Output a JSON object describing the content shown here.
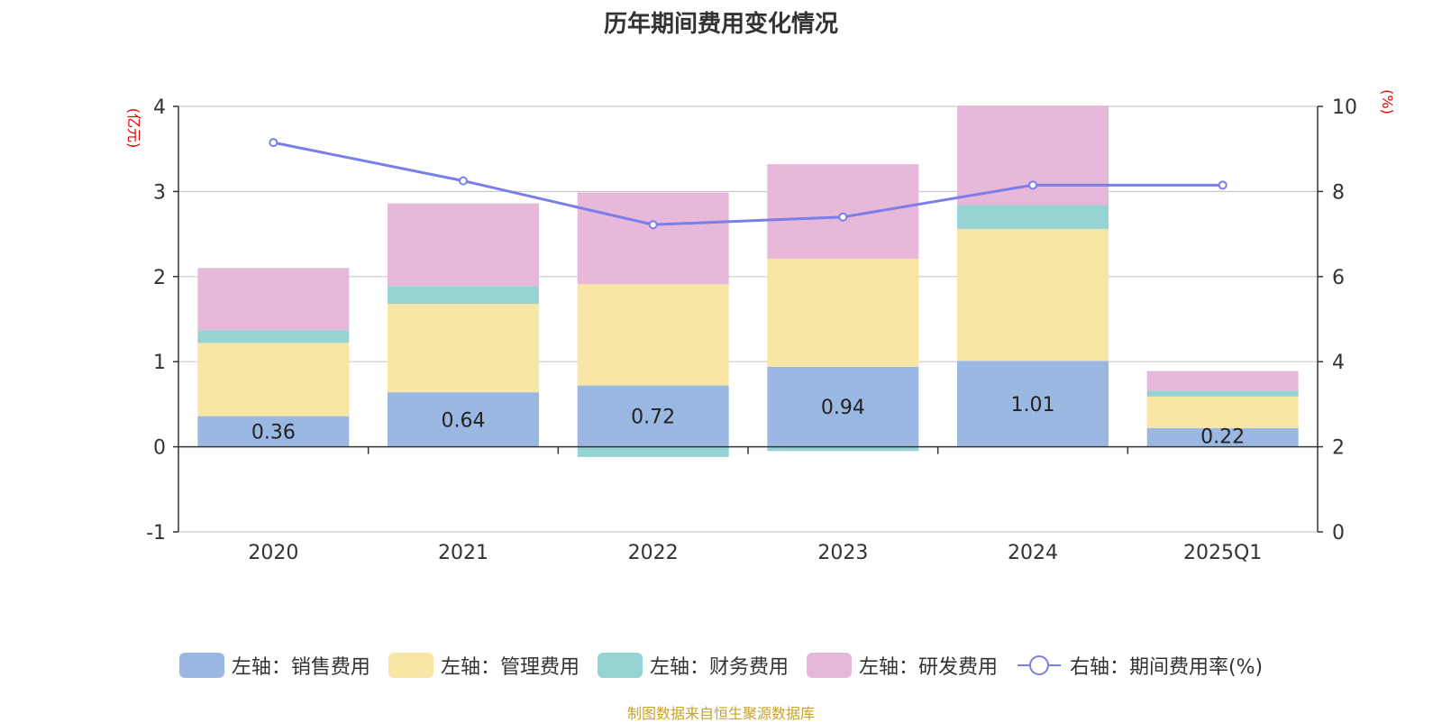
{
  "title": "历年期间费用变化情况",
  "source": "制图数据来自恒生聚源数据库",
  "colors": {
    "sales": "#9bb8e2",
    "admin": "#f7e6a6",
    "finance": "#96d4d4",
    "rnd": "#e7b8d9",
    "rate": "#7a7ee8"
  },
  "legend": [
    {
      "label": "左轴：销售费用"
    },
    {
      "label": "左轴：管理费用"
    },
    {
      "label": "左轴：财务费用"
    },
    {
      "label": "左轴：研发费用"
    },
    {
      "label": "右轴：期间费用率(%)"
    }
  ],
  "chart_data": {
    "type": "bar",
    "title": "历年期间费用变化情况",
    "categories": [
      "2020",
      "2021",
      "2022",
      "2023",
      "2024",
      "2025Q1"
    ],
    "left_axis": {
      "label": "(亿元)",
      "range": [
        -1,
        4
      ],
      "ticks": [
        -1,
        0,
        1,
        2,
        3,
        4
      ]
    },
    "right_axis": {
      "label": "(%)",
      "range": [
        0,
        10
      ],
      "ticks": [
        0,
        2,
        4,
        6,
        8,
        10
      ]
    },
    "stacked": true,
    "series": [
      {
        "name": "左轴：销售费用",
        "axis": "left",
        "values": [
          0.36,
          0.64,
          0.72,
          0.94,
          1.01,
          0.22
        ],
        "labels": [
          "0.36",
          "0.64",
          "0.72",
          "0.94",
          "1.01",
          "0.22"
        ]
      },
      {
        "name": "左轴：管理费用",
        "axis": "left",
        "values": [
          0.86,
          1.04,
          1.19,
          1.27,
          1.55,
          0.37
        ]
      },
      {
        "name": "左轴：财务费用",
        "axis": "left",
        "values": [
          0.15,
          0.21,
          -0.12,
          -0.05,
          0.28,
          0.07
        ]
      },
      {
        "name": "左轴：研发费用",
        "axis": "left",
        "values": [
          0.73,
          0.97,
          1.08,
          1.11,
          1.17,
          0.23
        ]
      },
      {
        "name": "右轴：期间费用率(%)",
        "axis": "right",
        "type": "line",
        "values": [
          9.15,
          8.25,
          7.22,
          7.4,
          8.15,
          8.15
        ]
      }
    ],
    "grid": true,
    "legend_position": "bottom"
  }
}
